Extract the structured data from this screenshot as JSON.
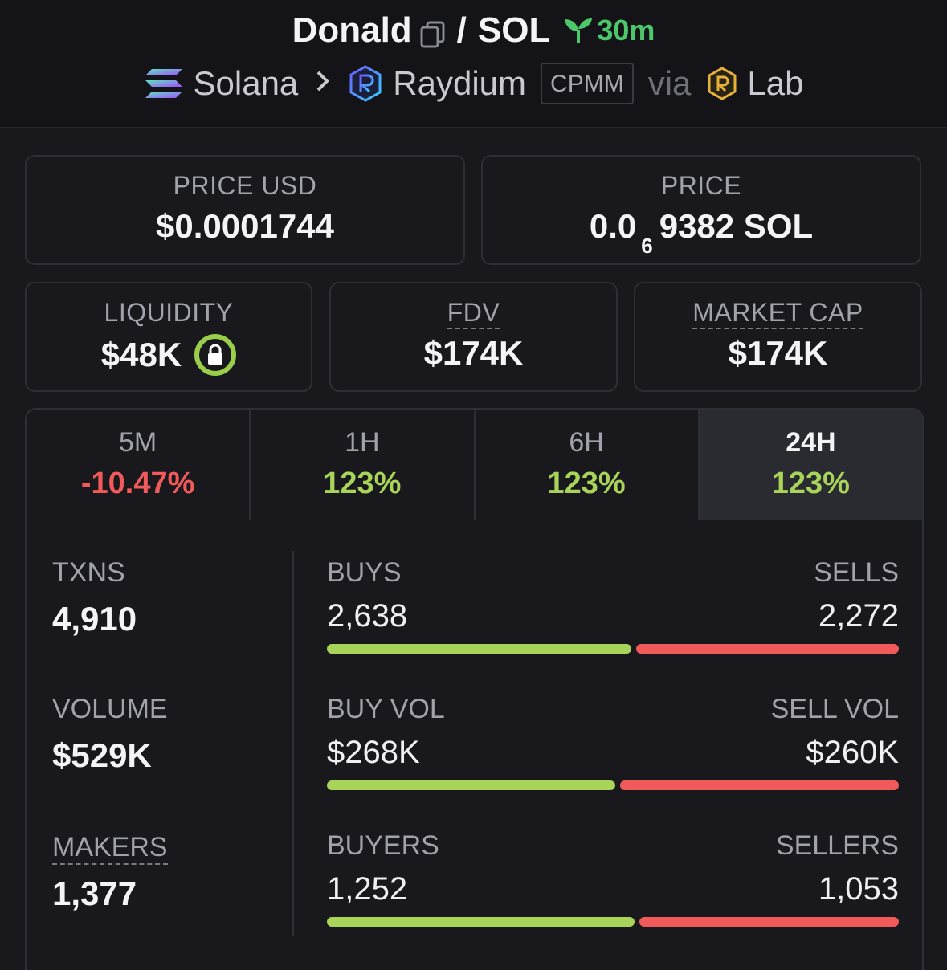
{
  "header": {
    "token": "Donald",
    "pair_sep": "/",
    "quote": "SOL",
    "age": "30m",
    "chain": "Solana",
    "dex": "Raydium",
    "pool_type": "CPMM",
    "via_label": "via",
    "launchpad": "Lab",
    "icons": [
      "copy-icon",
      "seedling-icon",
      "solana-logo-icon",
      "chevron-right-icon",
      "raydium-logo-icon",
      "lab-logo-icon"
    ]
  },
  "prices": {
    "usd_label": "PRICE USD",
    "usd_value": "$0.0001744",
    "native_label": "PRICE",
    "native_prefix": "0.0",
    "native_zeros": "6",
    "native_digits": "9382 SOL"
  },
  "metrics": {
    "liquidity_label": "LIQUIDITY",
    "liquidity_value": "$48K",
    "fdv_label": "FDV",
    "fdv_value": "$174K",
    "mcap_label": "MARKET CAP",
    "mcap_value": "$174K"
  },
  "tabs": [
    {
      "label": "5M",
      "change": "-10.47%"
    },
    {
      "label": "1H",
      "change": "123%"
    },
    {
      "label": "6H",
      "change": "123%"
    },
    {
      "label": "24H",
      "change": "123%"
    }
  ],
  "active_tab": "24H",
  "stats": {
    "txns_label": "TXNS",
    "txns_value": "4,910",
    "volume_label": "VOLUME",
    "volume_value": "$529K",
    "makers_label": "MAKERS",
    "makers_value": "1,377",
    "buys_label": "BUYS",
    "buys_value": "2,638",
    "sells_label": "SELLS",
    "sells_value": "2,272",
    "buy_vol_label": "BUY VOL",
    "buy_vol_value": "$268K",
    "sell_vol_label": "SELL VOL",
    "sell_vol_value": "$260K",
    "buyers_label": "BUYERS",
    "buyers_value": "1,252",
    "sellers_label": "SELLERS",
    "sellers_value": "1,053",
    "buys_ratio": 0.537,
    "buy_vol_ratio": 0.508,
    "buyers_ratio": 0.543
  },
  "colors": {
    "positive": "#a8d45a",
    "negative": "#f05a5a",
    "age_green": "#4cc86a",
    "lock_ring": "#9acd4a"
  }
}
